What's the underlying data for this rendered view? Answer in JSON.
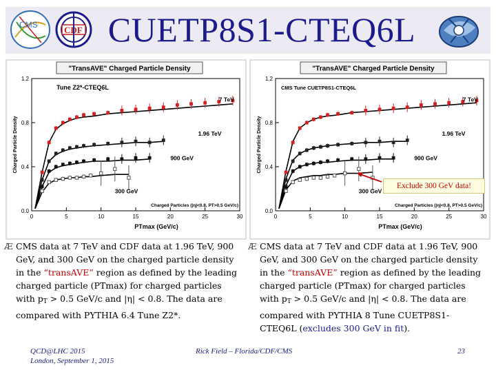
{
  "header": {
    "title": "CUETP8S1-CTEQ6L",
    "logos": [
      "cms-logo",
      "cdf-logo",
      "rick-field-logo"
    ],
    "accent_color": "#1b1b8c"
  },
  "chart_data": [
    {
      "type": "scatter",
      "title": "\"TransAVE\" Charged Particle Density",
      "tune_label": "Tune Z2*-CTEQ6L",
      "xlabel": "PTmax (GeV/c)",
      "ylabel": "Charged Particle Density",
      "cut_label": "Charged Particles (|η|<0.8, PT>0.5 GeV/c)",
      "xlim": [
        0,
        30
      ],
      "ylim": [
        0,
        1.2
      ],
      "xticks": [
        "0",
        "5",
        "10",
        "15",
        "20",
        "25",
        "30"
      ],
      "yticks": [
        "0.0",
        "0.4",
        "0.8",
        "1.2"
      ],
      "series": [
        {
          "name": "7 TeV",
          "color": "#d42020",
          "x": [
            1.5,
            2.5,
            3.5,
            4.5,
            5.5,
            6.5,
            7.5,
            9,
            11,
            13,
            15,
            17,
            19,
            21,
            23,
            25,
            27,
            29
          ],
          "y": [
            0.35,
            0.62,
            0.75,
            0.8,
            0.83,
            0.85,
            0.87,
            0.88,
            0.89,
            0.91,
            0.92,
            0.93,
            0.94,
            0.96,
            0.97,
            0.98,
            0.99,
            1.0
          ],
          "model": [
            0.35,
            0.62,
            0.74,
            0.79,
            0.82,
            0.84,
            0.85,
            0.86,
            0.88,
            0.89,
            0.9,
            0.91,
            0.92,
            0.93,
            0.94,
            0.95,
            0.96,
            0.97
          ]
        },
        {
          "name": "1.96 TeV",
          "color": "#222222",
          "x": [
            1.5,
            2.5,
            3.5,
            4.5,
            5.5,
            6.5,
            7.5,
            9,
            11,
            13,
            15,
            17,
            19
          ],
          "y": [
            0.28,
            0.45,
            0.52,
            0.55,
            0.57,
            0.58,
            0.59,
            0.6,
            0.61,
            0.62,
            0.63,
            0.62,
            0.64
          ],
          "model": [
            0.28,
            0.45,
            0.51,
            0.54,
            0.56,
            0.57,
            0.58,
            0.59,
            0.6,
            0.61,
            0.62,
            0.62,
            0.63
          ]
        },
        {
          "name": "900 GeV",
          "color": "#111111",
          "x": [
            1.5,
            2.5,
            3.5,
            4.5,
            5.5,
            6.5,
            7.5,
            9,
            11,
            13,
            15,
            17
          ],
          "y": [
            0.22,
            0.36,
            0.4,
            0.42,
            0.43,
            0.44,
            0.45,
            0.46,
            0.47,
            0.47,
            0.48,
            0.48
          ],
          "model": [
            0.22,
            0.35,
            0.39,
            0.41,
            0.42,
            0.43,
            0.44,
            0.45,
            0.45,
            0.46,
            0.46,
            0.47
          ]
        },
        {
          "name": "300 GeV",
          "color": "#555555",
          "x": [
            1.5,
            2.5,
            3.5,
            4.5,
            5.5,
            6.5,
            7.5,
            8.5,
            10,
            12,
            14
          ],
          "y": [
            0.18,
            0.26,
            0.28,
            0.29,
            0.3,
            0.3,
            0.31,
            0.32,
            0.34,
            0.38,
            0.3
          ],
          "model": [
            0.17,
            0.25,
            0.28,
            0.29,
            0.3,
            0.3,
            0.31,
            0.31,
            0.32,
            0.33,
            0.33
          ]
        }
      ]
    },
    {
      "type": "scatter",
      "title": "\"TransAVE\" Charged Particle Density",
      "tune_label": "CMS Tune CUETP8S1-CTEQ6L",
      "xlabel": "PTmax (GeV/c)",
      "ylabel": "Charged Particle Density",
      "cut_label": "Charged Particles (|η|<0.8, PT>0.5 GeV/c)",
      "xlim": [
        0,
        30
      ],
      "ylim": [
        0,
        1.2
      ],
      "xticks": [
        "0",
        "5",
        "10",
        "15",
        "20",
        "25",
        "30"
      ],
      "yticks": [
        "0.0",
        "0.4",
        "0.8",
        "1.2"
      ],
      "series": [
        {
          "name": "7 TeV",
          "color": "#d42020",
          "x": [
            1.5,
            2.5,
            3.5,
            4.5,
            5.5,
            6.5,
            7.5,
            9,
            11,
            13,
            15,
            17,
            19,
            21,
            23,
            25,
            27,
            29
          ],
          "y": [
            0.35,
            0.62,
            0.75,
            0.8,
            0.83,
            0.85,
            0.87,
            0.88,
            0.89,
            0.91,
            0.92,
            0.93,
            0.94,
            0.96,
            0.97,
            0.98,
            0.99,
            1.0
          ],
          "model": [
            0.36,
            0.63,
            0.75,
            0.8,
            0.83,
            0.85,
            0.86,
            0.87,
            0.89,
            0.9,
            0.91,
            0.92,
            0.93,
            0.94,
            0.95,
            0.96,
            0.97,
            0.98
          ]
        },
        {
          "name": "1.96 TeV",
          "color": "#222222",
          "x": [
            1.5,
            2.5,
            3.5,
            4.5,
            5.5,
            6.5,
            7.5,
            9,
            11,
            13,
            15,
            17,
            19
          ],
          "y": [
            0.28,
            0.45,
            0.52,
            0.55,
            0.57,
            0.58,
            0.59,
            0.6,
            0.61,
            0.62,
            0.63,
            0.62,
            0.64
          ],
          "model": [
            0.29,
            0.46,
            0.52,
            0.55,
            0.57,
            0.58,
            0.59,
            0.6,
            0.61,
            0.62,
            0.62,
            0.63,
            0.63
          ]
        },
        {
          "name": "900 GeV",
          "color": "#111111",
          "x": [
            1.5,
            2.5,
            3.5,
            4.5,
            5.5,
            6.5,
            7.5,
            9,
            11,
            13,
            15,
            17
          ],
          "y": [
            0.22,
            0.36,
            0.4,
            0.42,
            0.43,
            0.44,
            0.45,
            0.46,
            0.47,
            0.47,
            0.48,
            0.48
          ],
          "model": [
            0.23,
            0.36,
            0.4,
            0.42,
            0.43,
            0.44,
            0.44,
            0.45,
            0.46,
            0.46,
            0.47,
            0.47
          ]
        },
        {
          "name": "300 GeV",
          "color": "#555555",
          "x": [
            1.5,
            2.5,
            3.5,
            4.5,
            5.5,
            6.5,
            7.5,
            8.5,
            10,
            12,
            14
          ],
          "y": [
            0.18,
            0.26,
            0.28,
            0.29,
            0.3,
            0.3,
            0.31,
            0.32,
            0.34,
            0.38,
            0.3
          ],
          "model": [
            0.19,
            0.27,
            0.3,
            0.31,
            0.32,
            0.32,
            0.33,
            0.33,
            0.34,
            0.34,
            0.35
          ]
        }
      ],
      "annotation": "Exclude 300 GeV data!"
    }
  ],
  "bullets": {
    "left": {
      "p1": "CMS data at 7 TeV and CDF data at 1.96 TeV, 900 GeV, and 300 GeV on the charged particle density in the ",
      "hl": "“transAVE”",
      "p2": " region as defined by the leading charged particle (PTmax) for charged particles with p",
      "sub": "T",
      "p3": " > 0.5 GeV/c and |η| < 0.8. The data are compared with PYTHIA 6.4 Tune Z2*."
    },
    "right": {
      "p1": "CMS data at 7 TeV and CDF data at 1.96 TeV, 900 GeV, and 300 GeV on the charged particle density in the ",
      "hl": "“transAVE”",
      "p2": " region as defined by the leading charged particle (PTmax) for charged particles with p",
      "sub": "T",
      "p3": " > 0.5 GeV/c and |η| < 0.8. The data are compared with PYTHIA 8 Tune CUETP8S1-CTEQ6L (",
      "hl2": "excludes 300 GeV in fit",
      "p4": ")."
    },
    "marker": "Æ"
  },
  "footer": {
    "conference": "QCD@LHC 2015",
    "location_date": "London, September 1, 2015",
    "author": "Rick Field – Florida/CDF/CMS",
    "page": "23"
  }
}
